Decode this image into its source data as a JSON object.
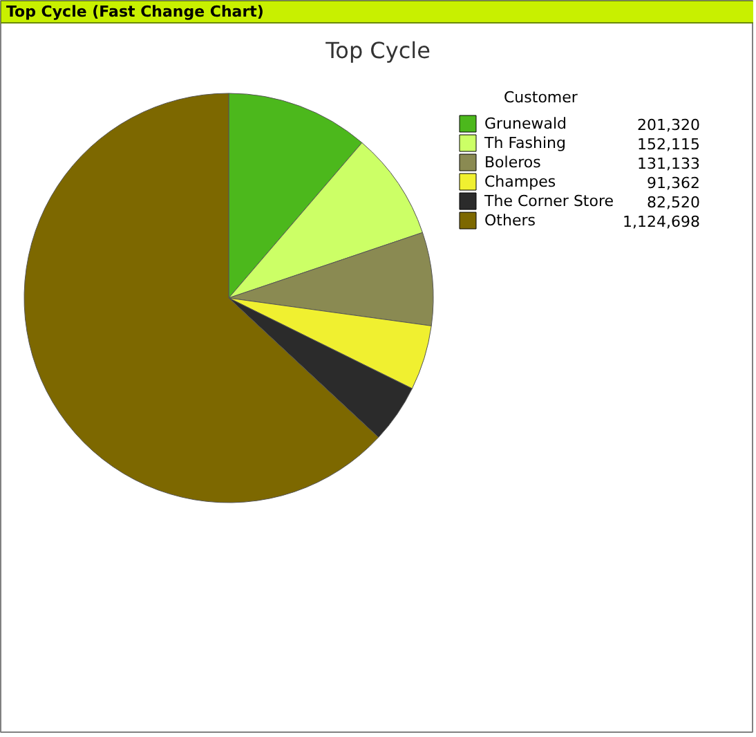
{
  "chart_data": {
    "type": "pie",
    "title": "Top Cycle",
    "annotations": [
      "Top Cycle (Fast Change Chart)"
    ],
    "legend_title": "Customer",
    "legend": "top right",
    "value_labels": [
      "201,320",
      "152,115",
      "131,133",
      "91,362",
      "82,520",
      "1,124,698"
    ],
    "categories": [
      "Grunewald",
      "Th Fashing",
      "Boleros",
      "Champes",
      "The Corner Store",
      "Others"
    ],
    "values": [
      201320,
      152115,
      131133,
      91362,
      82520,
      1124698
    ],
    "colors": [
      "#4cb81c",
      "#ccff66",
      "#8a8a52",
      "#f0f030",
      "#2b2b2b",
      "#7d6800"
    ]
  }
}
